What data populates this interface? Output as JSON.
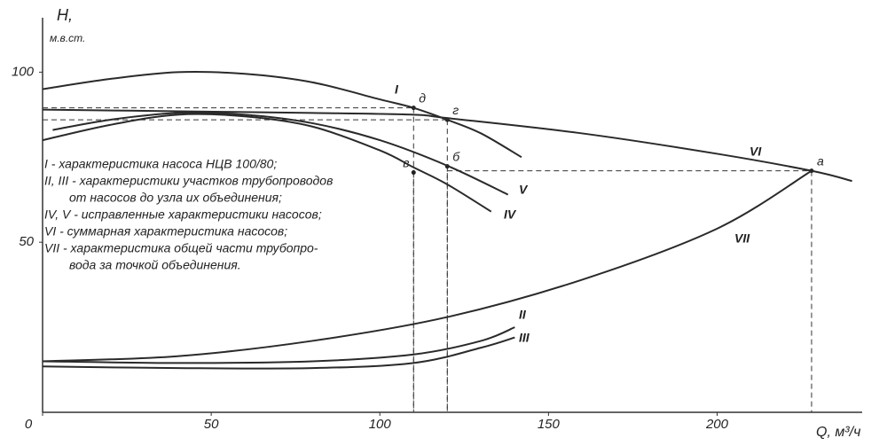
{
  "chart_data": {
    "type": "line",
    "y_label_line1": "H,",
    "y_label_line2": "м.в.ст.",
    "x_label": "Q, м³/ч",
    "xlim": [
      0,
      243
    ],
    "ylim": [
      0,
      116
    ],
    "xticks": [
      0,
      50,
      100,
      150,
      200
    ],
    "yticks": [
      50,
      100
    ],
    "series": [
      {
        "name": "I",
        "color": "#2a2a2a",
        "x": [
          0,
          20,
          40,
          60,
          80,
          100,
          110,
          120,
          130,
          142
        ],
        "values": [
          95,
          98,
          100,
          99.5,
          97,
          92,
          89.5,
          86,
          82,
          75
        ]
      },
      {
        "name": "VI",
        "color": "#2a2a2a",
        "x": [
          0,
          40,
          80,
          110,
          120,
          160,
          200,
          228,
          240
        ],
        "values": [
          89,
          88.5,
          88,
          87.5,
          86.5,
          82,
          76,
          71,
          68
        ]
      },
      {
        "name": "IV",
        "color": "#2a2a2a",
        "x": [
          0,
          20,
          40,
          60,
          80,
          100,
          110,
          120,
          133
        ],
        "values": [
          80,
          84.5,
          87.5,
          87,
          84,
          77,
          72,
          67,
          59
        ]
      },
      {
        "name": "V",
        "color": "#2a2a2a",
        "x": [
          3,
          20,
          40,
          60,
          80,
          100,
          120,
          138
        ],
        "values": [
          83,
          86,
          88,
          87.5,
          85,
          80,
          72.5,
          64
        ]
      },
      {
        "name": "VII",
        "color": "#2a2a2a",
        "x": [
          0,
          40,
          80,
          120,
          160,
          200,
          228
        ],
        "values": [
          15,
          16.5,
          21,
          28,
          39,
          54,
          71
        ]
      },
      {
        "name": "II",
        "color": "#2a2a2a",
        "x": [
          0,
          40,
          80,
          110,
          130,
          140
        ],
        "values": [
          15,
          14.5,
          15,
          17,
          21,
          25
        ]
      },
      {
        "name": "III",
        "color": "#2a2a2a",
        "x": [
          0,
          40,
          80,
          110,
          130,
          140
        ],
        "values": [
          13.5,
          13,
          13,
          14.5,
          19,
          22
        ]
      }
    ],
    "points": [
      {
        "label": "д",
        "x": 110,
        "y": 89.5,
        "hline": true
      },
      {
        "label": "г",
        "x": 120,
        "y": 86,
        "hline": true
      },
      {
        "label": "б",
        "x": 120,
        "y": 72.3,
        "hline": false
      },
      {
        "label": "в",
        "x": 110,
        "y": 70.5,
        "hline": false
      },
      {
        "label": "а",
        "x": 228,
        "y": 71,
        "hline": true
      }
    ],
    "notes": [
      "I - характеристика насоса НЦВ 100/80;",
      "II, III - характеристики участков трубопроводов",
      "от насосов до узла их объединения;",
      "IV, V - исправленные характеристики насосов;",
      "VI - суммарная характеристика насосов;",
      "VII - характеристика общей части трубопро-",
      "вода за точкой объединения."
    ]
  }
}
